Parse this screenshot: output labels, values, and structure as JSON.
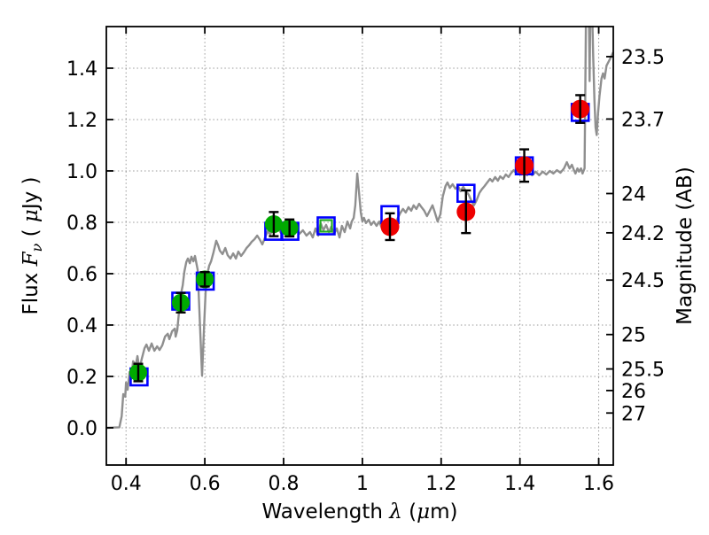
{
  "figure": {
    "background": "#ffffff",
    "frame_color": "#000000",
    "grid_color": "#999999"
  },
  "chart_data": {
    "type": "line",
    "description": "Galaxy SED: best-fit model spectrum (gray line), model photometry (blue open squares, one green open square) and observed photometry with error bars (green filled circles = optical, red filled circles = near-IR)",
    "title": "",
    "xlabel": "Wavelength λ (μm)",
    "ylabel_left": "Flux Fν ( μJy )",
    "ylabel_right": "Magnitude (AB)",
    "xlim": [
      0.35,
      1.637
    ],
    "ylim": [
      -0.145,
      1.562
    ],
    "grid": true,
    "legend_position": "none",
    "x_ticks": [
      {
        "value": 0.4,
        "label": "0.4"
      },
      {
        "value": 0.6,
        "label": "0.6"
      },
      {
        "value": 0.8,
        "label": "0.8"
      },
      {
        "value": 1.0,
        "label": "1"
      },
      {
        "value": 1.2,
        "label": "1.2"
      },
      {
        "value": 1.4,
        "label": "1.4"
      },
      {
        "value": 1.6,
        "label": "1.6"
      }
    ],
    "y_ticks_flux": [
      {
        "value": 0.0,
        "label": "0.0"
      },
      {
        "value": 0.2,
        "label": "0.2"
      },
      {
        "value": 0.4,
        "label": "0.4"
      },
      {
        "value": 0.6,
        "label": "0.6"
      },
      {
        "value": 0.8,
        "label": "0.8"
      },
      {
        "value": 1.0,
        "label": "1.0"
      },
      {
        "value": 1.2,
        "label": "1.2"
      },
      {
        "value": 1.4,
        "label": "1.4"
      }
    ],
    "y_ticks_magnitude": [
      {
        "label": "23.5",
        "flux_equivalent": 1.445
      },
      {
        "label": "23.7",
        "flux_equivalent": 1.202
      },
      {
        "label": "24",
        "flux_equivalent": 0.912
      },
      {
        "label": "24.2",
        "flux_equivalent": 0.759
      },
      {
        "label": "24.5",
        "flux_equivalent": 0.575
      },
      {
        "label": "25",
        "flux_equivalent": 0.363
      },
      {
        "label": "25.5",
        "flux_equivalent": 0.229
      },
      {
        "label": "26",
        "flux_equivalent": 0.145
      },
      {
        "label": "27",
        "flux_equivalent": 0.0575
      }
    ],
    "xlabel_parts": [
      {
        "text": "Wavelength ",
        "math": false
      },
      {
        "text": " λ",
        "math": true
      },
      {
        "text": " (",
        "math": false
      },
      {
        "text": "μ",
        "math": true
      },
      {
        "text": "m)",
        "math": false
      }
    ],
    "ylabel_left_parts": [
      {
        "text": "Flux ",
        "math": false
      },
      {
        "text": " F",
        "math": true
      },
      {
        "text": "ν",
        "math": true,
        "sub": true
      },
      {
        "text": "  ( ",
        "math": false
      },
      {
        "text": "μ",
        "math": true
      },
      {
        "text": "Jy )",
        "math": false
      }
    ],
    "series": [
      {
        "name": "model-spectrum",
        "type": "line",
        "color": "#8f8f8f",
        "linewidth": 2.4,
        "points": [
          [
            0.351,
            0.0
          ],
          [
            0.383,
            0.002
          ],
          [
            0.389,
            0.045
          ],
          [
            0.393,
            0.131
          ],
          [
            0.398,
            0.121
          ],
          [
            0.4,
            0.176
          ],
          [
            0.404,
            0.148
          ],
          [
            0.409,
            0.217
          ],
          [
            0.413,
            0.19
          ],
          [
            0.418,
            0.259
          ],
          [
            0.425,
            0.245
          ],
          [
            0.429,
            0.279
          ],
          [
            0.434,
            0.228
          ],
          [
            0.44,
            0.269
          ],
          [
            0.447,
            0.31
          ],
          [
            0.452,
            0.324
          ],
          [
            0.458,
            0.3
          ],
          [
            0.465,
            0.328
          ],
          [
            0.472,
            0.3
          ],
          [
            0.479,
            0.317
          ],
          [
            0.485,
            0.303
          ],
          [
            0.492,
            0.321
          ],
          [
            0.499,
            0.355
          ],
          [
            0.506,
            0.366
          ],
          [
            0.51,
            0.345
          ],
          [
            0.517,
            0.376
          ],
          [
            0.524,
            0.386
          ],
          [
            0.526,
            0.355
          ],
          [
            0.53,
            0.379
          ],
          [
            0.535,
            0.459
          ],
          [
            0.539,
            0.517
          ],
          [
            0.544,
            0.555
          ],
          [
            0.548,
            0.607
          ],
          [
            0.553,
            0.645
          ],
          [
            0.557,
            0.659
          ],
          [
            0.562,
            0.641
          ],
          [
            0.566,
            0.666
          ],
          [
            0.571,
            0.648
          ],
          [
            0.575,
            0.669
          ],
          [
            0.582,
            0.614
          ],
          [
            0.589,
            0.355
          ],
          [
            0.593,
            0.203
          ],
          [
            0.598,
            0.39
          ],
          [
            0.602,
            0.528
          ],
          [
            0.607,
            0.603
          ],
          [
            0.611,
            0.631
          ],
          [
            0.616,
            0.648
          ],
          [
            0.622,
            0.683
          ],
          [
            0.629,
            0.728
          ],
          [
            0.634,
            0.71
          ],
          [
            0.638,
            0.69
          ],
          [
            0.645,
            0.676
          ],
          [
            0.652,
            0.7
          ],
          [
            0.658,
            0.672
          ],
          [
            0.665,
            0.659
          ],
          [
            0.672,
            0.679
          ],
          [
            0.679,
            0.659
          ],
          [
            0.685,
            0.686
          ],
          [
            0.692,
            0.669
          ],
          [
            0.699,
            0.683
          ],
          [
            0.706,
            0.7
          ],
          [
            0.712,
            0.71
          ],
          [
            0.719,
            0.724
          ],
          [
            0.726,
            0.734
          ],
          [
            0.733,
            0.748
          ],
          [
            0.739,
            0.734
          ],
          [
            0.746,
            0.714
          ],
          [
            0.753,
            0.741
          ],
          [
            0.76,
            0.766
          ],
          [
            0.766,
            0.752
          ],
          [
            0.773,
            0.779
          ],
          [
            0.78,
            0.762
          ],
          [
            0.787,
            0.776
          ],
          [
            0.793,
            0.759
          ],
          [
            0.8,
            0.772
          ],
          [
            0.807,
            0.762
          ],
          [
            0.813,
            0.776
          ],
          [
            0.822,
            0.759
          ],
          [
            0.831,
            0.772
          ],
          [
            0.84,
            0.755
          ],
          [
            0.849,
            0.769
          ],
          [
            0.858,
            0.748
          ],
          [
            0.867,
            0.762
          ],
          [
            0.874,
            0.741
          ],
          [
            0.881,
            0.776
          ],
          [
            0.888,
            0.748
          ],
          [
            0.894,
            0.797
          ],
          [
            0.901,
            0.769
          ],
          [
            0.908,
            0.79
          ],
          [
            0.915,
            0.762
          ],
          [
            0.921,
            0.783
          ],
          [
            0.928,
            0.755
          ],
          [
            0.935,
            0.776
          ],
          [
            0.942,
            0.741
          ],
          [
            0.948,
            0.786
          ],
          [
            0.955,
            0.762
          ],
          [
            0.962,
            0.803
          ],
          [
            0.969,
            0.776
          ],
          [
            0.973,
            0.803
          ],
          [
            0.978,
            0.817
          ],
          [
            0.982,
            0.866
          ],
          [
            0.987,
            0.99
          ],
          [
            0.991,
            0.924
          ],
          [
            0.996,
            0.838
          ],
          [
            1.0,
            0.803
          ],
          [
            1.004,
            0.817
          ],
          [
            1.009,
            0.797
          ],
          [
            1.016,
            0.81
          ],
          [
            1.022,
            0.79
          ],
          [
            1.029,
            0.803
          ],
          [
            1.036,
            0.786
          ],
          [
            1.043,
            0.803
          ],
          [
            1.049,
            0.779
          ],
          [
            1.056,
            0.797
          ],
          [
            1.063,
            0.779
          ],
          [
            1.07,
            0.793
          ],
          [
            1.076,
            0.81
          ],
          [
            1.083,
            0.793
          ],
          [
            1.09,
            0.817
          ],
          [
            1.097,
            0.838
          ],
          [
            1.103,
            0.852
          ],
          [
            1.11,
            0.838
          ],
          [
            1.117,
            0.859
          ],
          [
            1.124,
            0.845
          ],
          [
            1.13,
            0.866
          ],
          [
            1.137,
            0.852
          ],
          [
            1.144,
            0.872
          ],
          [
            1.15,
            0.859
          ],
          [
            1.157,
            0.845
          ],
          [
            1.164,
            0.824
          ],
          [
            1.171,
            0.845
          ],
          [
            1.178,
            0.866
          ],
          [
            1.184,
            0.838
          ],
          [
            1.191,
            0.803
          ],
          [
            1.198,
            0.831
          ],
          [
            1.204,
            0.9
          ],
          [
            1.211,
            0.941
          ],
          [
            1.216,
            0.955
          ],
          [
            1.222,
            0.934
          ],
          [
            1.229,
            0.948
          ],
          [
            1.236,
            0.931
          ],
          [
            1.243,
            0.941
          ],
          [
            1.249,
            0.921
          ],
          [
            1.256,
            0.938
          ],
          [
            1.263,
            0.921
          ],
          [
            1.27,
            0.907
          ],
          [
            1.276,
            0.886
          ],
          [
            1.283,
            0.866
          ],
          [
            1.29,
            0.886
          ],
          [
            1.297,
            0.914
          ],
          [
            1.303,
            0.928
          ],
          [
            1.31,
            0.941
          ],
          [
            1.317,
            0.955
          ],
          [
            1.324,
            0.969
          ],
          [
            1.33,
            0.959
          ],
          [
            1.337,
            0.976
          ],
          [
            1.344,
            0.962
          ],
          [
            1.35,
            0.979
          ],
          [
            1.357,
            0.969
          ],
          [
            1.364,
            0.986
          ],
          [
            1.371,
            0.976
          ],
          [
            1.377,
            0.99
          ],
          [
            1.384,
            1.003
          ],
          [
            1.391,
            0.99
          ],
          [
            1.398,
            1.0
          ],
          [
            1.404,
            0.986
          ],
          [
            1.411,
            0.997
          ],
          [
            1.418,
            0.983
          ],
          [
            1.424,
            0.997
          ],
          [
            1.431,
            0.983
          ],
          [
            1.44,
            0.997
          ],
          [
            1.449,
            0.983
          ],
          [
            1.458,
            0.997
          ],
          [
            1.467,
            0.986
          ],
          [
            1.476,
            1.0
          ],
          [
            1.485,
            0.99
          ],
          [
            1.494,
            1.003
          ],
          [
            1.503,
            0.993
          ],
          [
            1.512,
            1.01
          ],
          [
            1.519,
            1.034
          ],
          [
            1.526,
            1.01
          ],
          [
            1.532,
            1.024
          ],
          [
            1.537,
            1.003
          ],
          [
            1.541,
            0.99
          ],
          [
            1.546,
            1.01
          ],
          [
            1.55,
            0.997
          ],
          [
            1.555,
            1.01
          ],
          [
            1.559,
            0.99
          ],
          [
            1.564,
            1.01
          ],
          [
            1.566,
            1.3
          ],
          [
            1.568,
            1.65
          ],
          [
            1.575,
            1.65
          ],
          [
            1.577,
            1.35
          ],
          [
            1.579,
            1.65
          ],
          [
            1.583,
            1.65
          ],
          [
            1.586,
            1.45
          ],
          [
            1.589,
            1.28
          ],
          [
            1.592,
            1.17
          ],
          [
            1.595,
            1.14
          ],
          [
            1.598,
            1.22
          ],
          [
            1.602,
            1.29
          ],
          [
            1.607,
            1.36
          ],
          [
            1.611,
            1.38
          ],
          [
            1.615,
            1.36
          ],
          [
            1.62,
            1.41
          ],
          [
            1.625,
            1.425
          ],
          [
            1.63,
            1.44
          ],
          [
            1.636,
            1.46
          ]
        ]
      },
      {
        "name": "model-photometry-squares",
        "type": "scatter",
        "marker": "open-square",
        "color": "#0000ff",
        "size": 19,
        "linewidth": 2.6,
        "points": [
          [
            0.433,
            0.198
          ],
          [
            0.539,
            0.493
          ],
          [
            0.601,
            0.571
          ],
          [
            0.775,
            0.765
          ],
          [
            0.816,
            0.765
          ],
          [
            0.908,
            0.786
          ],
          [
            1.07,
            0.83
          ],
          [
            1.263,
            0.913
          ],
          [
            1.411,
            1.02
          ],
          [
            1.553,
            1.228
          ]
        ]
      },
      {
        "name": "model-photometry-green-square",
        "type": "scatter",
        "marker": "open-square",
        "color": "#22aa22",
        "size": 13,
        "linewidth": 2.2,
        "points": [
          [
            0.908,
            0.786
          ]
        ]
      },
      {
        "name": "observed-photometry-optical",
        "type": "scatter",
        "marker": "filled-circle",
        "color": "#00aa00",
        "size": 20,
        "points": [
          {
            "x": 0.431,
            "y": 0.215,
            "yerr": 0.034
          },
          {
            "x": 0.539,
            "y": 0.487,
            "yerr": 0.038
          },
          {
            "x": 0.6,
            "y": 0.578,
            "yerr": 0.028
          },
          {
            "x": 0.775,
            "y": 0.793,
            "yerr": 0.047
          },
          {
            "x": 0.815,
            "y": 0.778,
            "yerr": 0.033
          }
        ]
      },
      {
        "name": "observed-photometry-nearIR",
        "type": "scatter",
        "marker": "filled-circle",
        "color": "#ee0000",
        "size": 21,
        "points": [
          {
            "x": 1.07,
            "y": 0.783,
            "yerr": 0.052
          },
          {
            "x": 1.263,
            "y": 0.841,
            "yerr": 0.083
          },
          {
            "x": 1.411,
            "y": 1.021,
            "yerr": 0.063
          },
          {
            "x": 1.553,
            "y": 1.241,
            "yerr": 0.054
          }
        ]
      }
    ]
  }
}
